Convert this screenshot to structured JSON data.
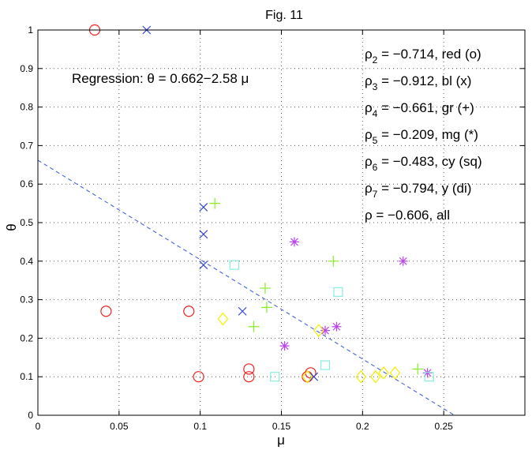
{
  "chart_data": {
    "type": "scatter",
    "title": "Fig. 11",
    "xlabel": "μ",
    "ylabel": "θ",
    "xlim": [
      0,
      0.3
    ],
    "ylim": [
      0,
      1
    ],
    "xticks": [
      0,
      0.05,
      0.1,
      0.15,
      0.2,
      0.25
    ],
    "xtick_labels": [
      "0",
      "0.05",
      "0.1",
      "0.15",
      "0.2",
      "0.25"
    ],
    "yticks": [
      0,
      0.1,
      0.2,
      0.3,
      0.4,
      0.5,
      0.6,
      0.7,
      0.8,
      0.9,
      1
    ],
    "ytick_labels": [
      "0",
      "0.1",
      "0.2",
      "0.3",
      "0.4",
      "0.5",
      "0.6",
      "0.7",
      "0.8",
      "0.9",
      "1"
    ],
    "grid": true,
    "regression": {
      "label": "Regression: θ = 0.662−2.58 μ",
      "intercept": 0.662,
      "slope": -2.58,
      "color": "#3355dd"
    },
    "annotations": [
      {
        "symbol": "ρ",
        "sub": "2",
        "rest": " = −0.714, red (o)"
      },
      {
        "symbol": "ρ",
        "sub": "3",
        "rest": " = −0.912, bl (x)"
      },
      {
        "symbol": "ρ",
        "sub": "4",
        "rest": " = −0.661, gr (+)"
      },
      {
        "symbol": "ρ",
        "sub": "5",
        "rest": " = −0.209, mg (*)"
      },
      {
        "symbol": "ρ",
        "sub": "6",
        "rest": " = −0.483, cy (sq)"
      },
      {
        "symbol": "ρ",
        "sub": "7",
        "rest": " = −0.794, y (di)"
      },
      {
        "symbol": "ρ",
        "sub": "",
        "rest": " = −0.606, all"
      }
    ],
    "series": [
      {
        "name": "red (o)",
        "marker": "circle",
        "color": "#ee2222",
        "points": [
          [
            0.035,
            1.0
          ],
          [
            0.042,
            0.27
          ],
          [
            0.093,
            0.27
          ],
          [
            0.099,
            0.1
          ],
          [
            0.13,
            0.12
          ],
          [
            0.13,
            0.1
          ],
          [
            0.166,
            0.1
          ],
          [
            0.168,
            0.11
          ]
        ]
      },
      {
        "name": "bl (x)",
        "marker": "x",
        "color": "#3344dd",
        "points": [
          [
            0.067,
            1.0
          ],
          [
            0.102,
            0.54
          ],
          [
            0.102,
            0.47
          ],
          [
            0.102,
            0.39
          ],
          [
            0.126,
            0.27
          ],
          [
            0.17,
            0.1
          ]
        ]
      },
      {
        "name": "gr (+)",
        "marker": "plus",
        "color": "#88ee22",
        "points": [
          [
            0.109,
            0.55
          ],
          [
            0.14,
            0.33
          ],
          [
            0.141,
            0.28
          ],
          [
            0.133,
            0.23
          ],
          [
            0.182,
            0.4
          ],
          [
            0.234,
            0.12
          ]
        ]
      },
      {
        "name": "mg (*)",
        "marker": "star",
        "color": "#bb44ee",
        "points": [
          [
            0.158,
            0.45
          ],
          [
            0.152,
            0.18
          ],
          [
            0.177,
            0.22
          ],
          [
            0.184,
            0.23
          ],
          [
            0.225,
            0.4
          ],
          [
            0.24,
            0.11
          ]
        ]
      },
      {
        "name": "cy (sq)",
        "marker": "square",
        "color": "#88eedd",
        "points": [
          [
            0.121,
            0.39
          ],
          [
            0.185,
            0.32
          ],
          [
            0.177,
            0.13
          ],
          [
            0.146,
            0.1
          ],
          [
            0.241,
            0.1
          ]
        ]
      },
      {
        "name": "y (di)",
        "marker": "diamond",
        "color": "#f0f000",
        "points": [
          [
            0.114,
            0.25
          ],
          [
            0.173,
            0.22
          ],
          [
            0.199,
            0.1
          ],
          [
            0.208,
            0.1
          ],
          [
            0.213,
            0.11
          ],
          [
            0.22,
            0.11
          ],
          [
            0.166,
            0.1
          ]
        ]
      }
    ]
  }
}
